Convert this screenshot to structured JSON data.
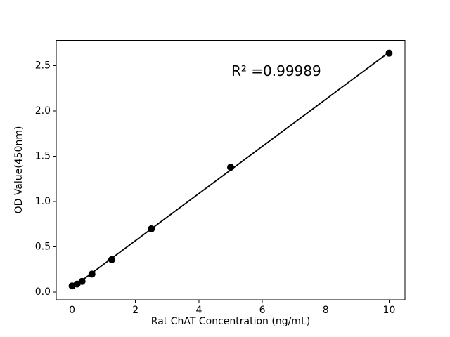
{
  "figure": {
    "background_color": "#ffffff",
    "foreground_color": "#000000"
  },
  "chart_data": {
    "type": "scatter",
    "title": "",
    "xlabel": "Rat ChAT Concentration (ng/mL)",
    "ylabel": "OD Value(450nm)",
    "annotation": {
      "text": "R² =0.99989"
    },
    "series": [
      {
        "name": "standard-curve-points",
        "marker": "circle",
        "color": "#000000",
        "x": [
          0,
          0.156,
          0.3125,
          0.625,
          1.25,
          2.5,
          5,
          10
        ],
        "y": [
          0.07,
          0.09,
          0.12,
          0.2,
          0.36,
          0.7,
          1.38,
          2.64
        ]
      }
    ],
    "fit_line": {
      "name": "linear-fit-line",
      "color": "#000000",
      "x": [
        0,
        10
      ],
      "y": [
        0.05,
        2.65
      ]
    },
    "xlim": [
      -0.5,
      10.5
    ],
    "ylim": [
      -0.085,
      2.78
    ],
    "xtick_values": [
      0,
      2,
      4,
      6,
      8,
      10
    ],
    "xtick_labels": [
      "0",
      "2",
      "4",
      "6",
      "8",
      "10"
    ],
    "ytick_values": [
      0,
      0.5,
      1,
      1.5,
      2,
      2.5
    ],
    "ytick_labels": [
      "0.0",
      "0.5",
      "1.0",
      "1.5",
      "2.0",
      "2.5"
    ],
    "grid": false,
    "legend": null
  }
}
